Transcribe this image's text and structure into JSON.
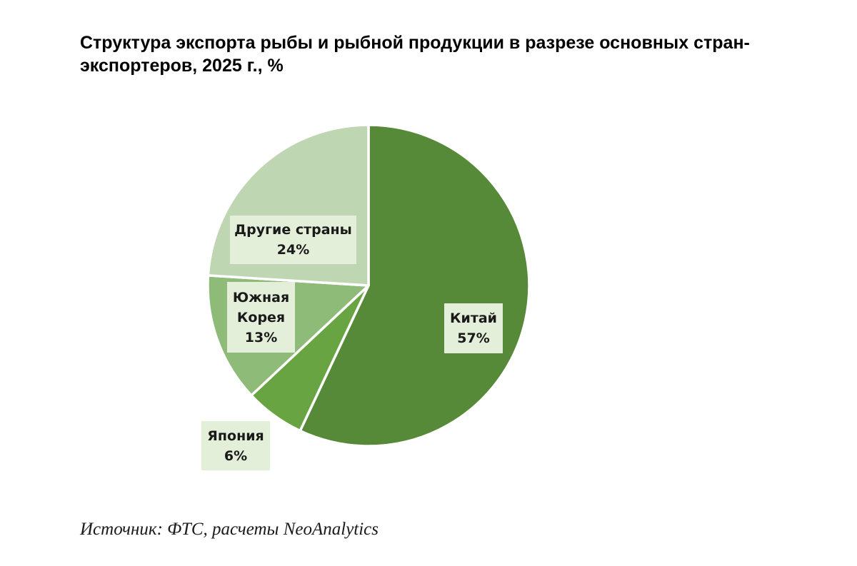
{
  "title_lines": [
    "Структура экспорта рыбы и рыбной продукции в разрезе основных стран-",
    "экспортеров, 2025 г., %"
  ],
  "chart_data": {
    "type": "pie",
    "title": "Структура экспорта рыбы и рыбной продукции в разрезе основных стран-экспортеров, 2025 г., %",
    "unit": "%",
    "start_angle_deg": 0,
    "direction": "clockwise",
    "slices": [
      {
        "name": "Китай",
        "label_lines": [
          "Китай"
        ],
        "value": 57,
        "value_label": "57%",
        "color": "#568a39"
      },
      {
        "name": "Япония",
        "label_lines": [
          "Япония"
        ],
        "value": 6,
        "value_label": "6%",
        "color": "#69a443"
      },
      {
        "name": "Южная Корея",
        "label_lines": [
          "Южная",
          "Корея"
        ],
        "value": 13,
        "value_label": "13%",
        "color": "#8fbb79"
      },
      {
        "name": "Другие страны",
        "label_lines": [
          "Другие страны"
        ],
        "value": 24,
        "value_label": "24%",
        "color": "#bfd6b3"
      }
    ]
  },
  "source": "Источник: ФТС, расчеты NeoAnalytics"
}
